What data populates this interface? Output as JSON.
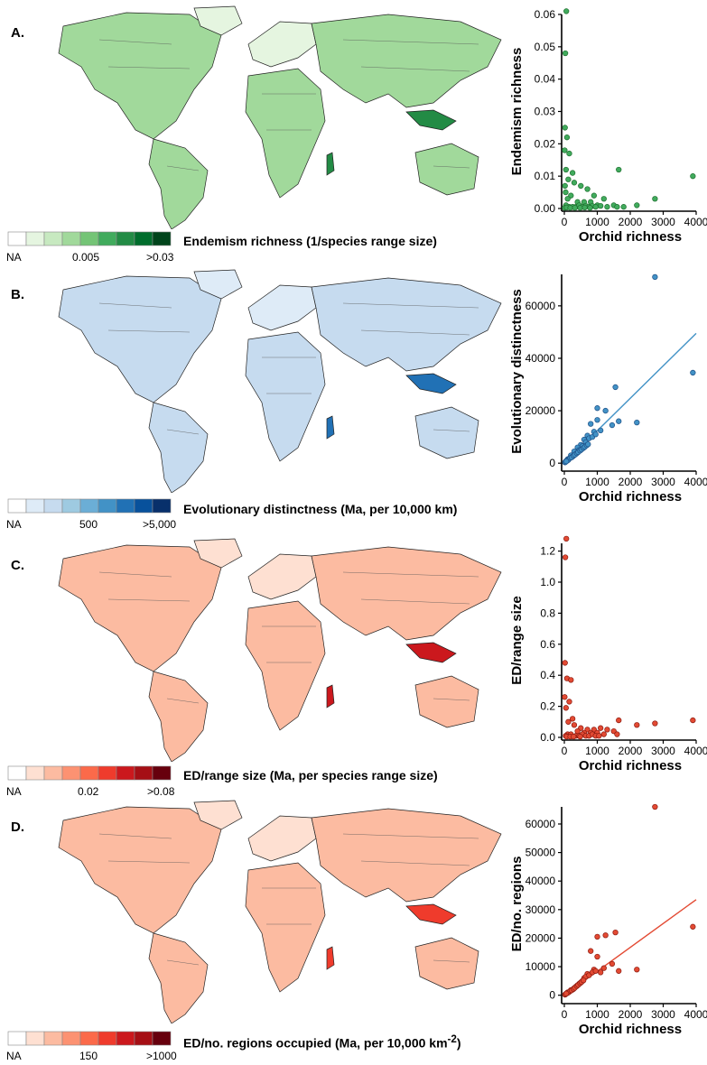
{
  "panels": [
    {
      "letter": "A.",
      "legend": {
        "title": "Endemism richness (1/species range size)",
        "na": "NA",
        "mid": "0.005",
        "max": ">0.03",
        "colors": [
          "#ffffff",
          "#e5f5e0",
          "#c7e9c0",
          "#a1d99b",
          "#74c476",
          "#41ab5d",
          "#238b45",
          "#006d2c",
          "#00441b"
        ]
      },
      "map": {
        "fill": "#a1d99b",
        "dark": "#238b45",
        "light": "#e5f5e0"
      },
      "chart": {
        "type": "scatter",
        "xlabel": "Orchid richness",
        "ylabel": "Endemism richness",
        "xlim": [
          0,
          4000
        ],
        "ylim": [
          0,
          0.06
        ],
        "xticks": [
          "0",
          "1000",
          "2000",
          "3000",
          "4000"
        ],
        "yticks": [
          "0.00",
          "0.01",
          "0.02",
          "0.03",
          "0.04",
          "0.05",
          "0.06"
        ],
        "point_color": "#41ab5d",
        "stroke_color": "#1f6f2f",
        "fit": null,
        "points": [
          [
            60,
            0.061
          ],
          [
            30,
            0.048
          ],
          [
            20,
            0.025
          ],
          [
            80,
            0.022
          ],
          [
            10,
            0.018
          ],
          [
            150,
            0.017
          ],
          [
            50,
            0.012
          ],
          [
            250,
            0.011
          ],
          [
            1650,
            0.012
          ],
          [
            3900,
            0.01
          ],
          [
            120,
            0.009
          ],
          [
            300,
            0.008
          ],
          [
            500,
            0.007
          ],
          [
            20,
            0.007
          ],
          [
            700,
            0.006
          ],
          [
            40,
            0.005
          ],
          [
            200,
            0.004
          ],
          [
            900,
            0.004
          ],
          [
            1200,
            0.003
          ],
          [
            2750,
            0.003
          ],
          [
            100,
            0.003
          ],
          [
            400,
            0.002
          ],
          [
            600,
            0.002
          ],
          [
            800,
            0.002
          ],
          [
            1000,
            0.001
          ],
          [
            1500,
            0.001
          ],
          [
            2200,
            0.001
          ],
          [
            50,
            0.001
          ],
          [
            150,
            0.0005
          ],
          [
            250,
            0.0005
          ],
          [
            350,
            0.0005
          ],
          [
            450,
            0.001
          ],
          [
            550,
            0.0005
          ],
          [
            650,
            0.0008
          ],
          [
            750,
            0.0005
          ],
          [
            850,
            0.0008
          ],
          [
            950,
            0.0005
          ],
          [
            1100,
            0.0008
          ],
          [
            1300,
            0.0005
          ],
          [
            1600,
            0.0005
          ],
          [
            1800,
            0.0005
          ],
          [
            10,
            0.0002
          ],
          [
            70,
            0.0003
          ],
          [
            180,
            0.0002
          ],
          [
            320,
            0.0002
          ],
          [
            480,
            0.0002
          ],
          [
            620,
            0.0003
          ],
          [
            780,
            0.0002
          ]
        ]
      }
    },
    {
      "letter": "B.",
      "legend": {
        "title": "Evolutionary distinctness (Ma, per 10,000 km)",
        "na": "NA",
        "mid": "500",
        "max": ">5,000",
        "colors": [
          "#ffffff",
          "#deebf7",
          "#c6dbef",
          "#9ecae1",
          "#6baed6",
          "#4292c6",
          "#2171b5",
          "#08519c",
          "#08306b"
        ]
      },
      "map": {
        "fill": "#c6dbef",
        "dark": "#2171b5",
        "light": "#deebf7"
      },
      "chart": {
        "type": "scatter",
        "xlabel": "Orchid richness",
        "ylabel": "Evolutionary distinctness",
        "xlim": [
          0,
          4000
        ],
        "ylim": [
          -2000,
          72000
        ],
        "xticks": [
          "0",
          "1000",
          "2000",
          "3000",
          "4000"
        ],
        "yticks": [
          "0",
          "20000",
          "40000",
          "60000"
        ],
        "point_color": "#4292c6",
        "stroke_color": "#1c4f86",
        "fit": [
          [
            0,
            0
          ],
          [
            4000,
            49500
          ]
        ],
        "points": [
          [
            2750,
            71000
          ],
          [
            3900,
            34500
          ],
          [
            1550,
            29000
          ],
          [
            1650,
            16000
          ],
          [
            2200,
            15500
          ],
          [
            1250,
            20000
          ],
          [
            1000,
            21000
          ],
          [
            1000,
            16500
          ],
          [
            1450,
            14500
          ],
          [
            800,
            15000
          ],
          [
            900,
            12000
          ],
          [
            700,
            10500
          ],
          [
            600,
            9000
          ],
          [
            500,
            7000
          ],
          [
            400,
            6000
          ],
          [
            300,
            4500
          ],
          [
            200,
            3000
          ],
          [
            100,
            1500
          ],
          [
            50,
            800
          ],
          [
            20,
            300
          ],
          [
            250,
            2500
          ],
          [
            350,
            3500
          ],
          [
            450,
            5000
          ],
          [
            550,
            6500
          ],
          [
            650,
            8000
          ],
          [
            750,
            9500
          ],
          [
            850,
            10000
          ],
          [
            950,
            11000
          ],
          [
            1100,
            12500
          ],
          [
            150,
            1800
          ],
          [
            80,
            900
          ],
          [
            120,
            1200
          ],
          [
            180,
            2000
          ],
          [
            220,
            2200
          ],
          [
            280,
            2800
          ],
          [
            320,
            3200
          ],
          [
            380,
            3800
          ],
          [
            420,
            4200
          ],
          [
            480,
            4800
          ],
          [
            520,
            5200
          ],
          [
            580,
            5800
          ],
          [
            620,
            6200
          ],
          [
            680,
            6800
          ],
          [
            720,
            7200
          ],
          [
            30,
            400
          ],
          [
            60,
            700
          ]
        ]
      }
    },
    {
      "letter": "C.",
      "legend": {
        "title": "ED/range size (Ma, per species range size)",
        "na": "NA",
        "mid": "0.02",
        "max": ">0.08",
        "colors": [
          "#ffffff",
          "#fee0d2",
          "#fcbba1",
          "#fc9272",
          "#fb6a4a",
          "#ef3b2c",
          "#cb181d",
          "#a50f15",
          "#67000d"
        ]
      },
      "map": {
        "fill": "#fcbba1",
        "dark": "#cb181d",
        "light": "#fee0d2"
      },
      "chart": {
        "type": "scatter",
        "xlabel": "Orchid richness",
        "ylabel": "ED/range size",
        "xlim": [
          0,
          4000
        ],
        "ylim": [
          0,
          1.25
        ],
        "xticks": [
          "0",
          "1000",
          "2000",
          "3000",
          "4000"
        ],
        "yticks": [
          "0.0",
          "0.2",
          "0.4",
          "0.6",
          "0.8",
          "1.0",
          "1.2"
        ],
        "point_color": "#e34a33",
        "stroke_color": "#8b1a10",
        "fit": null,
        "points": [
          [
            60,
            1.28
          ],
          [
            30,
            1.16
          ],
          [
            20,
            0.48
          ],
          [
            80,
            0.38
          ],
          [
            200,
            0.37
          ],
          [
            10,
            0.26
          ],
          [
            150,
            0.23
          ],
          [
            50,
            0.19
          ],
          [
            250,
            0.12
          ],
          [
            1650,
            0.11
          ],
          [
            3900,
            0.11
          ],
          [
            2750,
            0.09
          ],
          [
            2200,
            0.08
          ],
          [
            120,
            0.1
          ],
          [
            300,
            0.08
          ],
          [
            500,
            0.06
          ],
          [
            700,
            0.05
          ],
          [
            900,
            0.05
          ],
          [
            1100,
            0.06
          ],
          [
            1300,
            0.05
          ],
          [
            1500,
            0.04
          ],
          [
            400,
            0.04
          ],
          [
            600,
            0.03
          ],
          [
            800,
            0.03
          ],
          [
            1000,
            0.03
          ],
          [
            1200,
            0.02
          ],
          [
            100,
            0.02
          ],
          [
            200,
            0.02
          ],
          [
            350,
            0.01
          ],
          [
            450,
            0.01
          ],
          [
            550,
            0.02
          ],
          [
            650,
            0.01
          ],
          [
            750,
            0.01
          ],
          [
            850,
            0.02
          ],
          [
            950,
            0.01
          ],
          [
            1050,
            0.01
          ],
          [
            1600,
            0.02
          ],
          [
            40,
            0.01
          ],
          [
            70,
            0.005
          ],
          [
            180,
            0.005
          ],
          [
            280,
            0.005
          ],
          [
            480,
            0.005
          ]
        ]
      }
    },
    {
      "letter": "D.",
      "legend": {
        "title": "ED/no. regions occupied (Ma, per 10,000 km",
        "sup": "-2",
        "close": ")",
        "na": "NA",
        "mid": "150",
        "max": ">1000",
        "colors": [
          "#ffffff",
          "#fee0d2",
          "#fcbba1",
          "#fc9272",
          "#fb6a4a",
          "#ef3b2c",
          "#cb181d",
          "#a50f15",
          "#67000d"
        ]
      },
      "map": {
        "fill": "#fcbba1",
        "dark": "#ef3b2c",
        "light": "#fee0d2"
      },
      "chart": {
        "type": "scatter",
        "xlabel": "Orchid richness",
        "ylabel": "ED/no. regions",
        "xlim": [
          0,
          4000
        ],
        "ylim": [
          -2000,
          66000
        ],
        "xticks": [
          "0",
          "1000",
          "2000",
          "3000",
          "4000"
        ],
        "yticks": [
          "0",
          "10000",
          "20000",
          "30000",
          "40000",
          "50000",
          "60000"
        ],
        "point_color": "#e34a33",
        "stroke_color": "#8b1a10",
        "fit": [
          [
            0,
            0
          ],
          [
            4000,
            33500
          ]
        ],
        "points": [
          [
            2750,
            66000
          ],
          [
            3900,
            24000
          ],
          [
            1550,
            22000
          ],
          [
            1000,
            20500
          ],
          [
            1250,
            21000
          ],
          [
            800,
            15500
          ],
          [
            1000,
            13500
          ],
          [
            1450,
            11000
          ],
          [
            2200,
            9000
          ],
          [
            1650,
            8500
          ],
          [
            1200,
            9500
          ],
          [
            900,
            9000
          ],
          [
            700,
            7500
          ],
          [
            600,
            6000
          ],
          [
            500,
            4500
          ],
          [
            400,
            3500
          ],
          [
            300,
            2500
          ],
          [
            200,
            1800
          ],
          [
            100,
            1000
          ],
          [
            50,
            500
          ],
          [
            20,
            200
          ],
          [
            250,
            2000
          ],
          [
            350,
            3000
          ],
          [
            450,
            4000
          ],
          [
            550,
            5000
          ],
          [
            650,
            6500
          ],
          [
            750,
            7000
          ],
          [
            850,
            8000
          ],
          [
            950,
            8500
          ],
          [
            1100,
            8000
          ],
          [
            150,
            1200
          ],
          [
            80,
            700
          ],
          [
            120,
            900
          ],
          [
            180,
            1500
          ],
          [
            220,
            1700
          ],
          [
            280,
            2200
          ],
          [
            320,
            2600
          ],
          [
            380,
            3200
          ],
          [
            420,
            3600
          ],
          [
            480,
            4200
          ],
          [
            520,
            4600
          ],
          [
            580,
            5200
          ],
          [
            30,
            300
          ],
          [
            60,
            600
          ]
        ]
      }
    }
  ]
}
